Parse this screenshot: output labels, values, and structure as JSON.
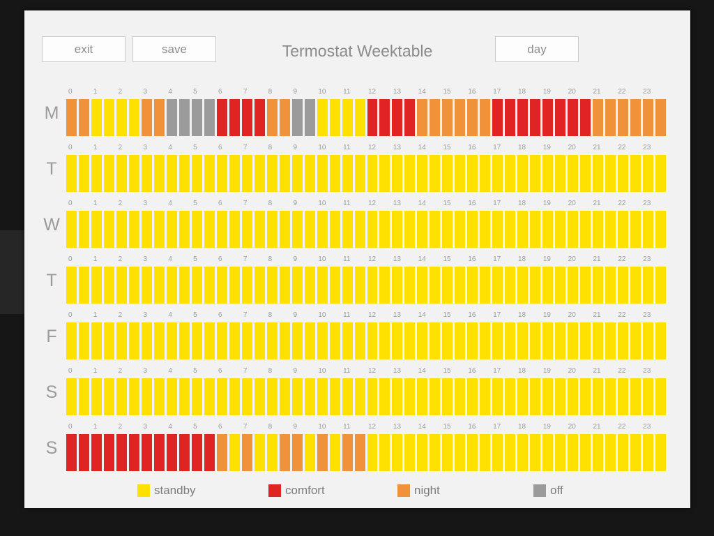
{
  "colors": {
    "standby": "#FFE100",
    "comfort": "#E02323",
    "night": "#F0923A",
    "off": "#9B9B9B"
  },
  "modes": {
    "s": "standby",
    "c": "comfort",
    "n": "night",
    "o": "off"
  },
  "header": {
    "title": "Termostat Weektable",
    "exit_label": "exit",
    "save_label": "save",
    "day_label": "day"
  },
  "hours": [
    "0",
    "1",
    "2",
    "3",
    "4",
    "5",
    "6",
    "7",
    "8",
    "9",
    "10",
    "11",
    "12",
    "13",
    "14",
    "15",
    "16",
    "17",
    "18",
    "19",
    "20",
    "21",
    "22",
    "23"
  ],
  "days": [
    {
      "label": "M",
      "cells": "nnssssnnooooccccnnoossssccccnnnnnnccccccccnnnnnn"
    },
    {
      "label": "T",
      "cells": "ssssssssssssssssssssssssssssssssssssssssssssssss"
    },
    {
      "label": "W",
      "cells": "ssssssssssssssssssssssssssssssssssssssssssssssss"
    },
    {
      "label": "T",
      "cells": "ssssssssssssssssssssssssssssssssssssssssssssssss"
    },
    {
      "label": "F",
      "cells": "ssssssssssssssssssssssssssssssssssssssssssssssss"
    },
    {
      "label": "S",
      "cells": "ssssssssssssssssssssssssssssssssssssssssssssssss"
    },
    {
      "label": "S",
      "cells": "ccccccccccccnsnssnnsnsnnssssssssssssssssssssssss"
    }
  ],
  "legend": [
    {
      "key": "standby",
      "label": "standby"
    },
    {
      "key": "comfort",
      "label": "comfort"
    },
    {
      "key": "night",
      "label": "night"
    },
    {
      "key": "off",
      "label": "off"
    }
  ]
}
